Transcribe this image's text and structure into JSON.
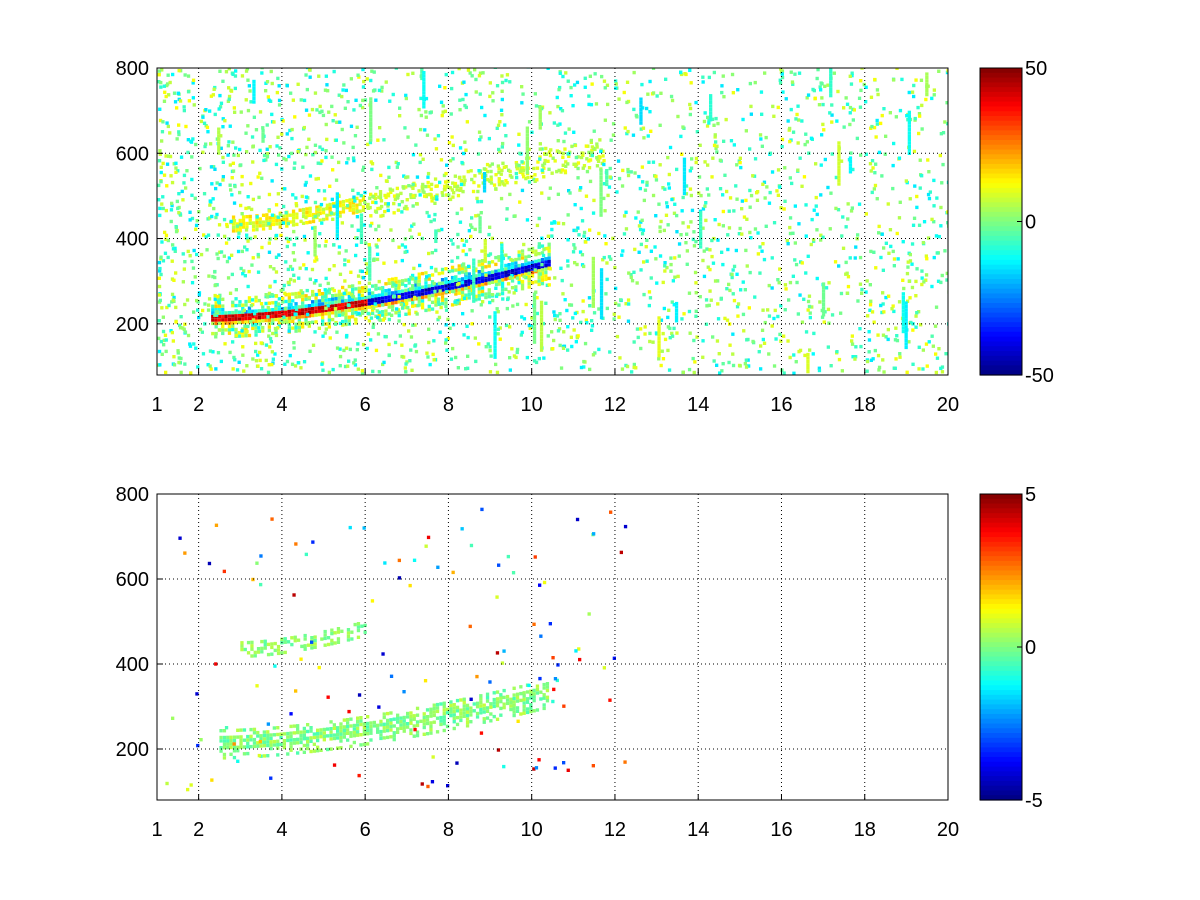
{
  "chart_data": [
    {
      "type": "heatmap",
      "xlim": [
        1,
        20
      ],
      "ylim": [
        80,
        800
      ],
      "xticks": [
        1,
        2,
        4,
        6,
        8,
        10,
        12,
        14,
        16,
        18,
        20
      ],
      "yticks": [
        200,
        400,
        600,
        800
      ],
      "xtick_labels": [
        "1",
        "2",
        "4",
        "6",
        "8",
        "10",
        "12",
        "14",
        "16",
        "18",
        "20"
      ],
      "ytick_labels": [
        "200",
        "400",
        "600",
        "800"
      ],
      "grid": true,
      "colormap": "jet",
      "colorbar": {
        "range": [
          -50,
          50
        ],
        "tick_labels": [
          "50",
          "0",
          "-50"
        ],
        "placement": "right"
      },
      "features": [
        {
          "label": "main curve",
          "x_range": [
            2.3,
            10.4
          ],
          "y_start": 210,
          "y_end": 340,
          "value_sign": "mixed",
          "peak": 50
        },
        {
          "label": "upper curve",
          "x_range": [
            2.8,
            6.0
          ],
          "y_start": 430,
          "y_end": 480,
          "value_sign": "positive",
          "peak": 15
        },
        {
          "label": "faint streaks",
          "x_range": [
            6.0,
            11.7
          ],
          "y_start": 470,
          "y_end": 600,
          "value_sign": "positive",
          "peak": 10
        },
        {
          "label": "scattered noise",
          "x_range": [
            1,
            20
          ],
          "y_range": [
            80,
            800
          ]
        }
      ]
    },
    {
      "type": "heatmap",
      "xlim": [
        1,
        20
      ],
      "ylim": [
        80,
        800
      ],
      "xticks": [
        1,
        2,
        4,
        6,
        8,
        10,
        12,
        14,
        16,
        18,
        20
      ],
      "yticks": [
        200,
        400,
        600,
        800
      ],
      "xtick_labels": [
        "1",
        "2",
        "4",
        "6",
        "8",
        "10",
        "12",
        "14",
        "16",
        "18",
        "20"
      ],
      "ytick_labels": [
        "200",
        "400",
        "600",
        "800"
      ],
      "grid": true,
      "colormap": "jet",
      "colorbar": {
        "range": [
          -5,
          5
        ],
        "tick_labels": [
          "5",
          "0",
          "-5"
        ],
        "placement": "right"
      },
      "features": [
        {
          "label": "main curve",
          "x_range": [
            2.5,
            10.4
          ],
          "y_start": 210,
          "y_end": 330,
          "value_sign": "near-zero"
        },
        {
          "label": "upper curve",
          "x_range": [
            3.0,
            6.0
          ],
          "y_start": 430,
          "y_end": 480,
          "value_sign": "near-zero"
        },
        {
          "label": "isolated points",
          "x_range": [
            1.2,
            12.3
          ],
          "y_range": [
            100,
            760
          ]
        }
      ]
    }
  ]
}
